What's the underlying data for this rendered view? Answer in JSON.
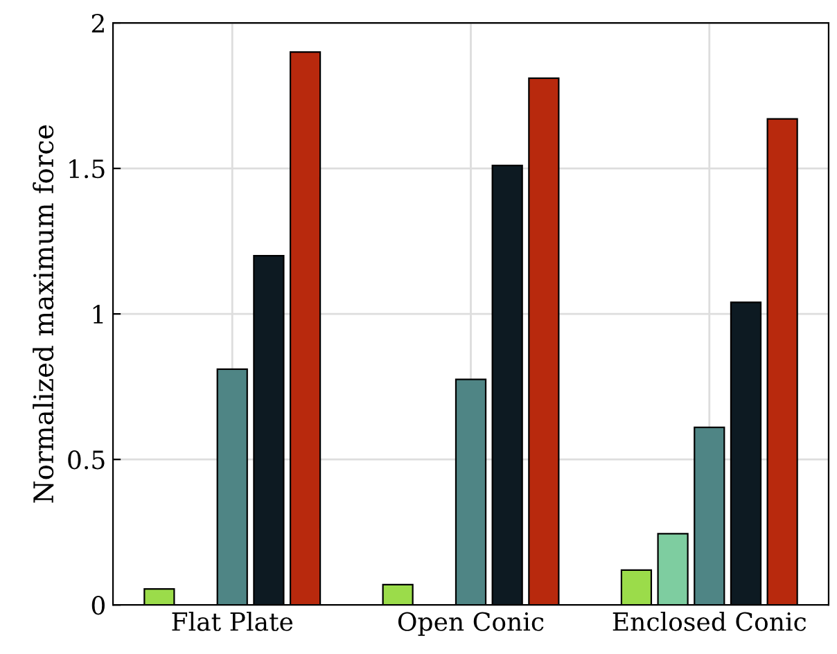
{
  "chart_data": {
    "type": "bar",
    "ylabel": "Normalized maximum force",
    "categories": [
      "Flat Plate",
      "Open Conic",
      "Enclosed Conic"
    ],
    "series": [
      {
        "color": "#9bdc4a",
        "values": [
          0.055,
          0.07,
          0.12
        ]
      },
      {
        "color": "#7ecda0",
        "values": [
          null,
          null,
          0.245
        ]
      },
      {
        "color": "#4f8585",
        "values": [
          0.81,
          0.775,
          0.61
        ]
      },
      {
        "color": "#0d1a22",
        "values": [
          1.2,
          1.51,
          1.04
        ]
      },
      {
        "color": "#b8290d",
        "values": [
          1.9,
          1.81,
          1.67
        ]
      }
    ],
    "ylim": [
      0,
      2
    ],
    "yticks": [
      0,
      0.5,
      1,
      1.5,
      2
    ],
    "grid": true
  }
}
